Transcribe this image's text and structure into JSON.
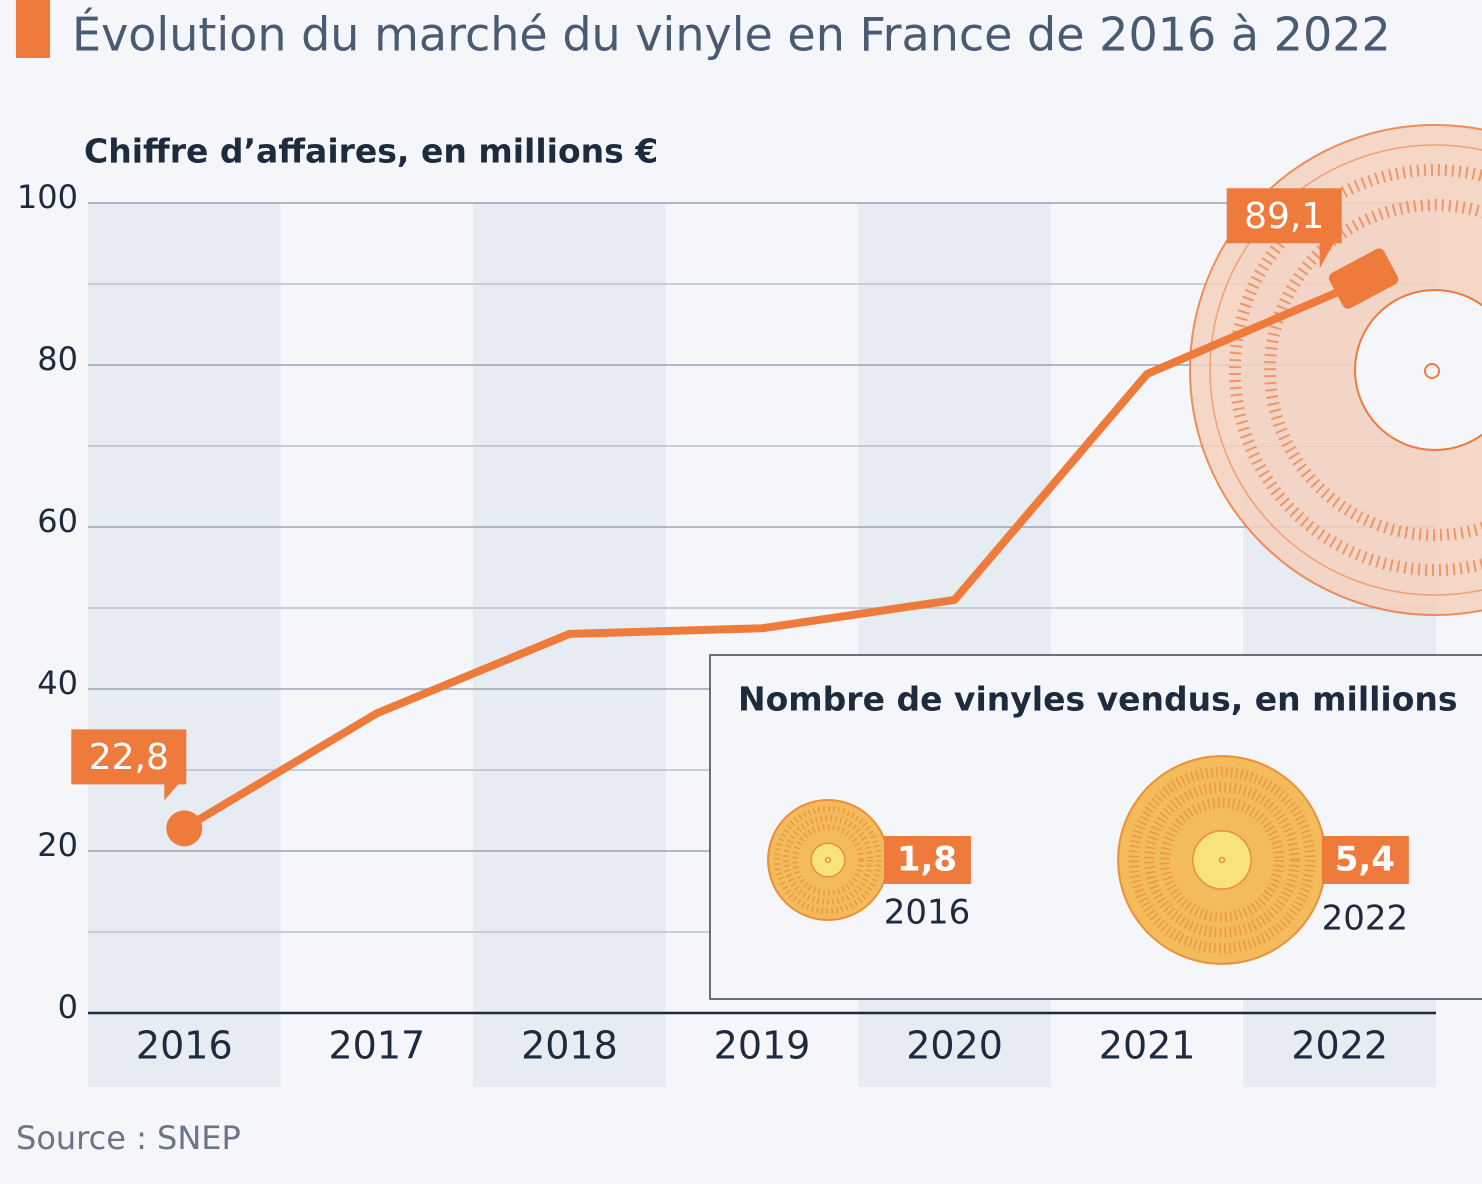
{
  "chart_data": {
    "type": "line",
    "title": "Évolution du marché du vinyle en France de 2016 à 2022",
    "y_axis_title": "Chiffre d’affaires, en millions €",
    "source": "Source : SNEP",
    "categories": [
      "2016",
      "2017",
      "2018",
      "2019",
      "2020",
      "2021",
      "2022"
    ],
    "values": [
      22.8,
      37,
      46.8,
      47.5,
      51,
      78.9,
      89.1
    ],
    "value_labels": [
      "22,8",
      null,
      null,
      null,
      null,
      null,
      "89,1"
    ],
    "color": "#ee7b3c",
    "ylim": [
      0,
      100
    ],
    "yticks": [
      0,
      20,
      40,
      60,
      80,
      100
    ],
    "yticks_minor": [
      10,
      30,
      50,
      70,
      90
    ],
    "grid": true,
    "inset": {
      "title": "Nombre de vinyles vendus, en millions",
      "items": [
        {
          "year": "2016",
          "value": 1.8,
          "label": "1,8"
        },
        {
          "year": "2022",
          "value": 5.4,
          "label": "5,4"
        }
      ]
    }
  }
}
